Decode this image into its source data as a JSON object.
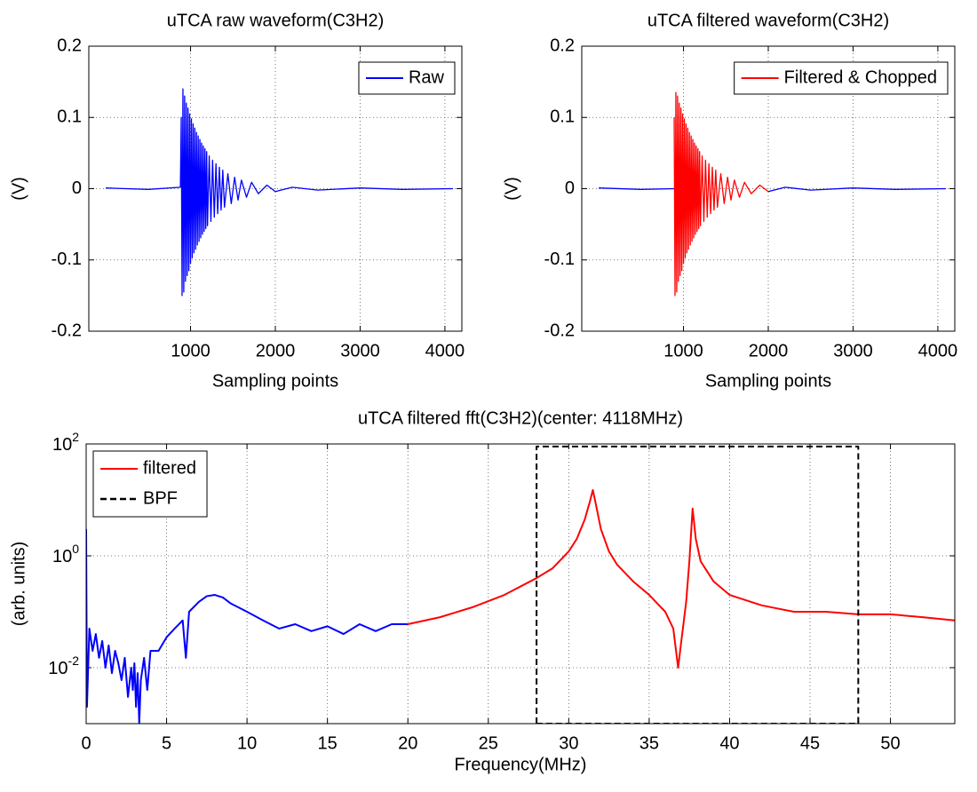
{
  "chart_data": [
    {
      "type": "line",
      "title": "uTCA raw waveform(C3H2)",
      "x_label": "Sampling points",
      "y_label": "(V)",
      "xlim": [
        -200,
        4200
      ],
      "ylim": [
        -0.2,
        0.2
      ],
      "xticks": [
        1000,
        2000,
        3000,
        4000
      ],
      "yticks": [
        -0.2,
        -0.1,
        0,
        0.1,
        0.2
      ],
      "grid": true,
      "legend": "upper right",
      "series": [
        {
          "name": "Raw",
          "color": "#0000ff",
          "x": [
            0,
            500,
            880,
            890,
            900,
            910,
            920,
            930,
            940,
            950,
            960,
            970,
            980,
            990,
            1000,
            1010,
            1020,
            1030,
            1040,
            1050,
            1060,
            1070,
            1080,
            1090,
            1100,
            1110,
            1120,
            1130,
            1140,
            1150,
            1160,
            1170,
            1180,
            1190,
            1200,
            1220,
            1240,
            1260,
            1280,
            1300,
            1320,
            1340,
            1360,
            1380,
            1400,
            1440,
            1480,
            1520,
            1560,
            1600,
            1660,
            1720,
            1800,
            1900,
            2000,
            2200,
            2500,
            3000,
            3500,
            4096
          ],
          "values": [
            0.001,
            -0.001,
            0.002,
            0.1,
            -0.15,
            0.14,
            -0.145,
            0.13,
            -0.13,
            0.12,
            -0.122,
            0.113,
            -0.115,
            0.105,
            -0.105,
            0.098,
            -0.097,
            0.091,
            -0.09,
            0.085,
            -0.085,
            0.079,
            -0.079,
            0.074,
            -0.074,
            0.069,
            -0.069,
            0.064,
            -0.064,
            0.06,
            -0.06,
            0.056,
            -0.056,
            0.052,
            -0.052,
            0.046,
            -0.046,
            0.04,
            -0.04,
            0.035,
            -0.035,
            0.03,
            -0.03,
            0.026,
            -0.026,
            0.021,
            -0.021,
            0.016,
            -0.016,
            0.012,
            -0.012,
            0.009,
            -0.007,
            0.005,
            -0.004,
            0.002,
            -0.002,
            0.001,
            -0.001,
            0
          ]
        }
      ]
    },
    {
      "type": "line",
      "title": "uTCA filtered waveform(C3H2)",
      "x_label": "Sampling points",
      "y_label": "(V)",
      "xlim": [
        -200,
        4200
      ],
      "ylim": [
        -0.2,
        0.2
      ],
      "xticks": [
        1000,
        2000,
        3000,
        4000
      ],
      "yticks": [
        -0.2,
        -0.1,
        0,
        0.1,
        0.2
      ],
      "grid": true,
      "legend": "upper right",
      "series": [
        {
          "color": "#0000ff",
          "x": [
            0,
            500,
            890,
            1950,
            2000,
            2200,
            2500,
            3000,
            3500,
            4096
          ],
          "values": [
            0.001,
            -0.001,
            0,
            null,
            -0.004,
            0.002,
            -0.002,
            0.001,
            -0.001,
            0
          ]
        },
        {
          "name": "Filtered & Chopped",
          "color": "#ff0000",
          "x": [
            890,
            900,
            910,
            920,
            930,
            940,
            950,
            960,
            970,
            980,
            990,
            1000,
            1010,
            1020,
            1030,
            1040,
            1050,
            1060,
            1070,
            1080,
            1090,
            1100,
            1110,
            1120,
            1130,
            1140,
            1150,
            1160,
            1170,
            1180,
            1190,
            1200,
            1220,
            1240,
            1260,
            1280,
            1300,
            1320,
            1340,
            1360,
            1380,
            1400,
            1440,
            1480,
            1520,
            1560,
            1600,
            1660,
            1720,
            1800,
            1900,
            2000
          ],
          "values": [
            0.1,
            -0.15,
            0.135,
            -0.145,
            0.13,
            -0.13,
            0.12,
            -0.122,
            0.113,
            -0.115,
            0.105,
            -0.105,
            0.098,
            -0.097,
            0.091,
            -0.09,
            0.085,
            -0.085,
            0.079,
            -0.079,
            0.074,
            -0.074,
            0.069,
            -0.069,
            0.064,
            -0.064,
            0.06,
            -0.06,
            0.056,
            -0.056,
            0.052,
            -0.052,
            0.046,
            -0.046,
            0.04,
            -0.04,
            0.035,
            -0.035,
            0.03,
            -0.03,
            0.026,
            -0.026,
            0.021,
            -0.021,
            0.016,
            -0.016,
            0.012,
            -0.012,
            0.009,
            -0.007,
            0.005,
            -0.004
          ]
        }
      ]
    },
    {
      "type": "line",
      "title": "uTCA filtered fft(C3H2)(center: 4118MHz)",
      "x_label": "Frequency(MHz)",
      "y_label": "(arb. units)",
      "xlim": [
        0,
        54
      ],
      "ylim": [
        0.001,
        100
      ],
      "yscale": "log",
      "xticks": [
        0,
        5,
        10,
        15,
        20,
        25,
        30,
        35,
        40,
        45,
        50
      ],
      "yticks": [
        {
          "value": 0.01,
          "label": "10^-2"
        },
        {
          "value": 1,
          "label": "10^0"
        },
        {
          "value": 100,
          "label": "10^2"
        }
      ],
      "grid": true,
      "legend": "upper left",
      "series": [
        {
          "color": "#0000ff",
          "x": [
            0,
            0.05,
            0.2,
            0.4,
            0.6,
            0.8,
            1.0,
            1.2,
            1.4,
            1.6,
            1.8,
            2.0,
            2.2,
            2.4,
            2.6,
            2.8,
            2.9,
            3.0,
            3.1,
            3.2,
            3.3,
            3.4,
            3.6,
            3.8,
            4.0,
            4.5,
            5.0,
            5.5,
            6.0,
            6.2,
            6.4,
            7.0,
            7.5,
            8.0,
            8.5,
            9.0,
            10,
            11,
            12,
            13,
            14,
            15,
            16,
            17,
            18,
            19,
            20
          ],
          "values": [
            3,
            0.002,
            0.05,
            0.02,
            0.04,
            0.015,
            0.03,
            0.01,
            0.025,
            0.008,
            0.02,
            0.012,
            0.006,
            0.015,
            0.003,
            0.01,
            0.004,
            0.012,
            0.002,
            0.008,
            0.001,
            0.006,
            0.015,
            0.004,
            0.02,
            0.02,
            0.035,
            0.05,
            0.07,
            0.015,
            0.1,
            0.15,
            0.19,
            0.2,
            0.18,
            0.14,
            0.1,
            0.07,
            0.05,
            0.06,
            0.045,
            0.055,
            0.04,
            0.06,
            0.045,
            0.06,
            0.06
          ]
        },
        {
          "name": "filtered",
          "color": "#ff0000",
          "x": [
            20,
            22,
            24,
            26,
            28,
            29,
            30,
            30.5,
            31,
            31.3,
            31.5,
            31.7,
            32,
            32.5,
            33,
            34,
            35,
            36,
            36.5,
            36.8,
            37,
            37.3,
            37.5,
            37.7,
            37.9,
            38.2,
            39,
            40,
            42,
            44,
            46,
            48,
            50,
            52,
            54
          ],
          "values": [
            0.06,
            0.08,
            0.12,
            0.2,
            0.4,
            0.6,
            1.2,
            2,
            4.5,
            9,
            15,
            8,
            3,
            1.2,
            0.7,
            0.35,
            0.2,
            0.1,
            0.05,
            0.01,
            0.03,
            0.15,
            0.8,
            7,
            2,
            0.8,
            0.35,
            0.2,
            0.13,
            0.1,
            0.1,
            0.09,
            0.09,
            0.08,
            0.07
          ]
        },
        {
          "name": "BPF",
          "color": "#000000",
          "linestyle": "dashed",
          "x": [
            28,
            28,
            48,
            48,
            28
          ],
          "values": [
            0.001,
            90,
            90,
            0.001,
            0.001
          ]
        }
      ]
    }
  ]
}
